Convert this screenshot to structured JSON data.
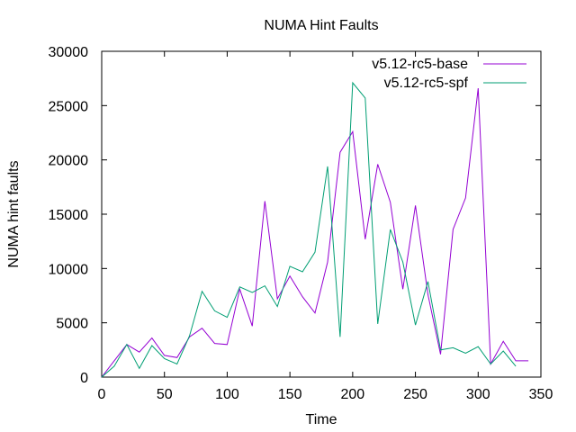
{
  "chart_data": {
    "type": "line",
    "title": "NUMA Hint Faults",
    "xlabel": "Time",
    "ylabel": "NUMA hint faults",
    "xlim": [
      0,
      350
    ],
    "ylim": [
      0,
      30000
    ],
    "xticks": [
      0,
      50,
      100,
      150,
      200,
      250,
      300,
      350
    ],
    "yticks": [
      0,
      5000,
      10000,
      15000,
      20000,
      25000,
      30000
    ],
    "grid": false,
    "legend_position": "top-right",
    "series": [
      {
        "name": "v5.12-rc5-base",
        "color": "#9400d3",
        "x": [
          0,
          10,
          20,
          30,
          40,
          50,
          60,
          70,
          80,
          90,
          100,
          110,
          120,
          130,
          140,
          150,
          160,
          170,
          180,
          190,
          200,
          210,
          220,
          230,
          240,
          250,
          260,
          270,
          280,
          290,
          300,
          310,
          320,
          330,
          340
        ],
        "y": [
          0,
          1500,
          3000,
          2300,
          3600,
          2000,
          1800,
          3700,
          4500,
          3100,
          3000,
          8100,
          4700,
          16200,
          7200,
          9300,
          7400,
          5900,
          10600,
          20700,
          22600,
          12700,
          19600,
          16100,
          8100,
          15800,
          7600,
          2100,
          13600,
          16500,
          26600,
          1200,
          3300,
          1500,
          1500
        ]
      },
      {
        "name": "v5.12-rc5-spf",
        "color": "#009e73",
        "x": [
          0,
          10,
          20,
          30,
          40,
          50,
          60,
          70,
          80,
          90,
          100,
          110,
          120,
          130,
          140,
          150,
          160,
          170,
          180,
          190,
          200,
          210,
          220,
          230,
          240,
          250,
          260,
          270,
          280,
          290,
          300,
          310,
          320,
          330
        ],
        "y": [
          0,
          1000,
          3000,
          800,
          2900,
          1700,
          1200,
          3800,
          7900,
          6100,
          5500,
          8300,
          7800,
          8400,
          6500,
          10200,
          9700,
          11500,
          19400,
          3700,
          27100,
          25700,
          4900,
          13600,
          10600,
          4800,
          8800,
          2500,
          2700,
          2200,
          2800,
          1200,
          2400,
          1000
        ]
      }
    ]
  }
}
